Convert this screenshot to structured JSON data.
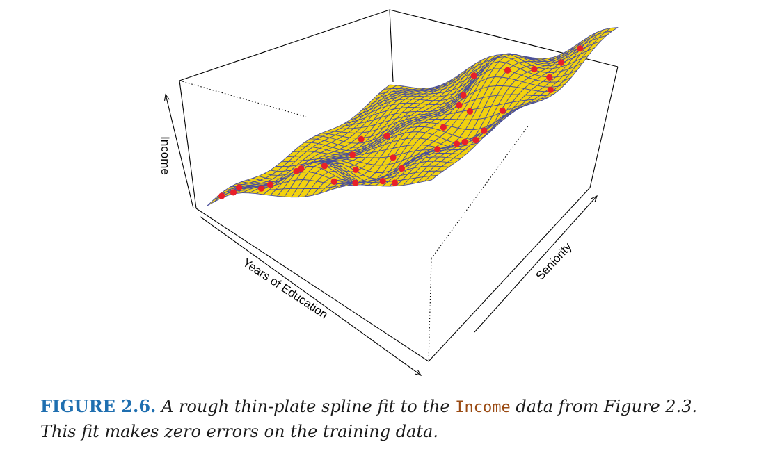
{
  "figure": {
    "axis_labels": {
      "z": "Income",
      "x": "Years of Education",
      "y": "Seniority"
    }
  },
  "caption": {
    "label": "FIGURE 2.6.",
    "text_before": "A rough thin-plate spline fit to the",
    "code_word": "Income",
    "text_after": "data from Figure 2.3.",
    "line2": "This fit makes zero errors on the training data."
  },
  "colors": {
    "surface_fill": "#f2d20f",
    "mesh_lines": "#4a4f9b",
    "data_points": "#e8202a",
    "box_lines": "#000000",
    "figure_label": "#1f6fb0",
    "code_word": "#9a4a12"
  },
  "chart_data": {
    "type": "3d-surface",
    "surface": "rough thin-plate spline",
    "grid": false
  }
}
